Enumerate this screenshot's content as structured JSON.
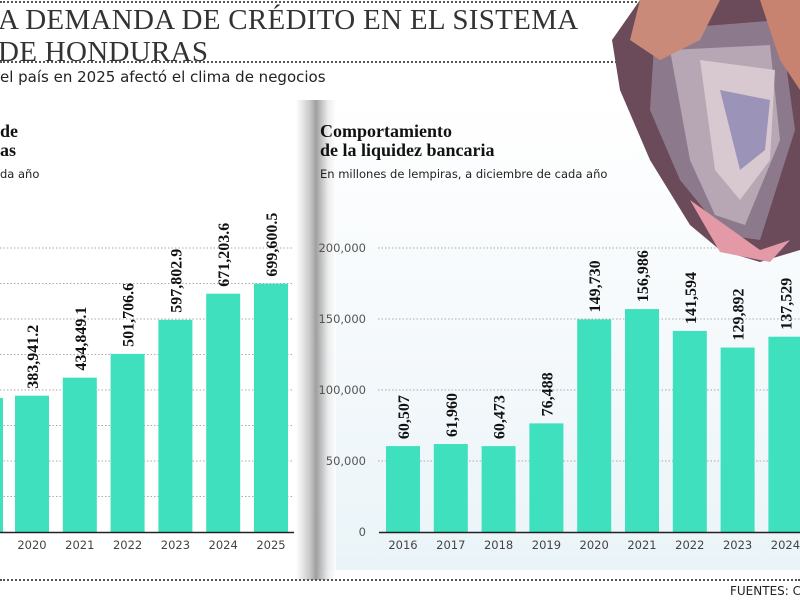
{
  "header": {
    "title_line1": "A DEMANDA DE CRÉDITO EN EL SISTEMA",
    "title_line2": "DE HONDURAS",
    "subtitle": "el país en 2025 afectó el clima de negocios"
  },
  "footer": {
    "source": "FUENTES: CN"
  },
  "colors": {
    "bar": "#3ee0bd",
    "text": "#111111"
  },
  "chart_data": [
    {
      "type": "bar",
      "title_lines": [
        "de",
        "as"
      ],
      "subtitle": "da año",
      "categories": [
        "2020",
        "2021",
        "2022",
        "2023",
        "2024",
        "2025"
      ],
      "values": [
        383941.2,
        434849.1,
        501706.6,
        597802.9,
        671203.6,
        699600.5
      ],
      "data_labels": [
        "383,941.2",
        "434,849.1",
        "501,706.6",
        "597,802.9",
        "671,203.6",
        "699,600.5"
      ],
      "ylim": [
        0,
        800000
      ],
      "grid": true
    },
    {
      "type": "bar",
      "title_lines": [
        "Comportamiento",
        "de la liquidez bancaria"
      ],
      "subtitle": "En millones de lempiras, a diciembre de cada año",
      "categories": [
        "2016",
        "2017",
        "2018",
        "2019",
        "2020",
        "2021",
        "2022",
        "2023",
        "2024"
      ],
      "values": [
        60507,
        61960,
        60473,
        76488,
        149730,
        156986,
        141594,
        129892,
        137529
      ],
      "data_labels": [
        "60,507",
        "61,960",
        "60,473",
        "76,488",
        "149,730",
        "156,986",
        "141,594",
        "129,892",
        "137,529"
      ],
      "yticks": [
        "0",
        "50,000",
        "100,000",
        "150,000",
        "200,000"
      ],
      "ytick_values": [
        0,
        50000,
        100000,
        150000,
        200000
      ],
      "ylim": [
        0,
        200000
      ],
      "grid": true
    }
  ]
}
